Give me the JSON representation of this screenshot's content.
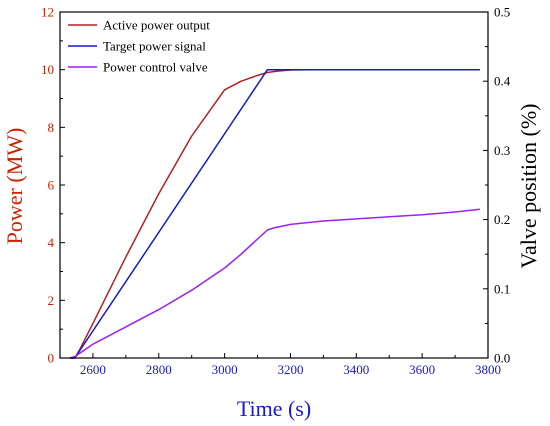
{
  "chart_data": {
    "type": "line",
    "xlabel": "Time (s)",
    "ylabel_left": "Power (MW)",
    "ylabel_right": "Valve position (%)",
    "xlim": [
      2500,
      3800
    ],
    "ylim_left": [
      0,
      12
    ],
    "ylim_right": [
      0,
      0.5
    ],
    "x_ticks": [
      "2600",
      "2800",
      "3000",
      "3200",
      "3400",
      "3600",
      "3800"
    ],
    "y_ticks_left": [
      "0",
      "2",
      "4",
      "6",
      "8",
      "10",
      "12"
    ],
    "y_ticks_right": [
      "0.0",
      "0.1",
      "0.2",
      "0.3",
      "0.4",
      "0.5"
    ],
    "grid": false,
    "legend_position": "top-left",
    "colors": {
      "left_axis": "#cc2200",
      "x_axis": "#1a1acc",
      "right_axis": "#000000"
    },
    "series": [
      {
        "name": "Active power output",
        "axis": "left",
        "color": "#b22222",
        "x": [
          2530,
          2545,
          2560,
          2600,
          2700,
          2800,
          2900,
          3000,
          3050,
          3100,
          3130,
          3160,
          3200,
          3250,
          3300,
          3400,
          3500,
          3600,
          3700,
          3775
        ],
        "y": [
          0.0,
          0.0,
          0.3,
          1.2,
          3.5,
          5.7,
          7.7,
          9.3,
          9.6,
          9.8,
          9.9,
          9.95,
          9.99,
          10.0,
          10.0,
          10.0,
          10.0,
          10.0,
          10.0,
          10.0
        ]
      },
      {
        "name": "Target power signal",
        "axis": "left",
        "color": "#1a1acc",
        "x": [
          2530,
          2545,
          3130,
          3775
        ],
        "y": [
          0.0,
          0.0,
          10.0,
          10.0
        ]
      },
      {
        "name": "Power control valve",
        "axis": "right",
        "color": "#a020f0",
        "x": [
          2530,
          2545,
          2600,
          2700,
          2800,
          2900,
          3000,
          3050,
          3100,
          3130,
          3150,
          3200,
          3300,
          3400,
          3500,
          3600,
          3700,
          3775
        ],
        "y": [
          0.0,
          0.002,
          0.02,
          0.045,
          0.07,
          0.098,
          0.13,
          0.15,
          0.172,
          0.185,
          0.188,
          0.193,
          0.198,
          0.201,
          0.204,
          0.207,
          0.211,
          0.215
        ]
      }
    ]
  }
}
